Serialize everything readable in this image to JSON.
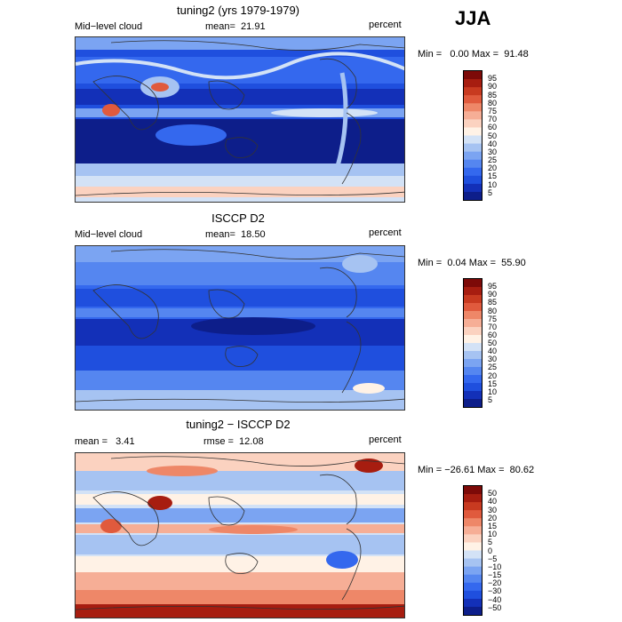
{
  "season": "JJA",
  "panels": [
    {
      "title": "tuning2 (yrs 1979-1979)",
      "left_label": "Mid−level cloud",
      "mid_label": "mean=  21.91",
      "right_label": "percent",
      "minmax": "Min =   0.00 Max =  91.48"
    },
    {
      "title": "ISCCP D2",
      "left_label": "Mid−level cloud",
      "mid_label": "mean=  18.50",
      "right_label": "percent",
      "minmax": "Min =  0.04 Max =  55.90"
    },
    {
      "title": "tuning2 − ISCCP D2",
      "left_label": "mean =   3.41",
      "mid_label": "rmse =  12.08",
      "right_label": "percent",
      "minmax": "Min = −26.61 Max =  80.62"
    }
  ],
  "chart_data": [
    {
      "type": "heatmap",
      "title": "tuning2 (yrs 1979-1979)",
      "variable": "Mid-level cloud",
      "units": "percent",
      "mean": 21.91,
      "min": 0.0,
      "max": 91.48,
      "colorbar_levels": [
        5,
        10,
        15,
        20,
        25,
        30,
        40,
        50,
        60,
        70,
        75,
        80,
        85,
        90,
        95
      ],
      "colorbar_labels": [
        "95",
        "90",
        "85",
        "80",
        "75",
        "70",
        "60",
        "50",
        "40",
        "30",
        "25",
        "20",
        "15",
        "10",
        "5"
      ],
      "colorbar_colors": [
        "#0d1e8a",
        "#1330b8",
        "#1f4fde",
        "#3468ee",
        "#5586f0",
        "#7ba4f2",
        "#a6c3f2",
        "#d3e2f6",
        "#fff2e6",
        "#fbd2c0",
        "#f6ae96",
        "#ee8768",
        "#e05a3d",
        "#c83a20",
        "#a71d10",
        "#7d0a08"
      ]
    },
    {
      "type": "heatmap",
      "title": "ISCCP D2",
      "variable": "Mid-level cloud",
      "units": "percent",
      "mean": 18.5,
      "min": 0.04,
      "max": 55.9,
      "colorbar_levels": [
        5,
        10,
        15,
        20,
        25,
        30,
        40,
        50,
        60,
        70,
        75,
        80,
        85,
        90,
        95
      ],
      "colorbar_labels": [
        "95",
        "90",
        "85",
        "80",
        "75",
        "70",
        "60",
        "50",
        "40",
        "30",
        "25",
        "20",
        "15",
        "10",
        "5"
      ],
      "colorbar_colors": [
        "#0d1e8a",
        "#1330b8",
        "#1f4fde",
        "#3468ee",
        "#5586f0",
        "#7ba4f2",
        "#a6c3f2",
        "#d3e2f6",
        "#fff2e6",
        "#fbd2c0",
        "#f6ae96",
        "#ee8768",
        "#e05a3d",
        "#c83a20",
        "#a71d10",
        "#7d0a08"
      ]
    },
    {
      "type": "heatmap",
      "title": "tuning2 - ISCCP D2",
      "units": "percent",
      "mean": 3.41,
      "rmse": 12.08,
      "min": -26.61,
      "max": 80.62,
      "colorbar_levels": [
        -50,
        -40,
        -30,
        -20,
        -15,
        -10,
        -5,
        0,
        5,
        10,
        15,
        20,
        30,
        40,
        50
      ],
      "colorbar_labels": [
        "50",
        "40",
        "30",
        "20",
        "15",
        "10",
        "5",
        "0",
        "−5",
        "−10",
        "−15",
        "−20",
        "−30",
        "−40",
        "−50"
      ],
      "colorbar_colors": [
        "#0d1e8a",
        "#1330b8",
        "#1f4fde",
        "#3468ee",
        "#5586f0",
        "#7ba4f2",
        "#a6c3f2",
        "#d3e2f6",
        "#fff2e6",
        "#fbd2c0",
        "#f6ae96",
        "#ee8768",
        "#e05a3d",
        "#c83a20",
        "#a71d10",
        "#7d0a08"
      ]
    }
  ]
}
